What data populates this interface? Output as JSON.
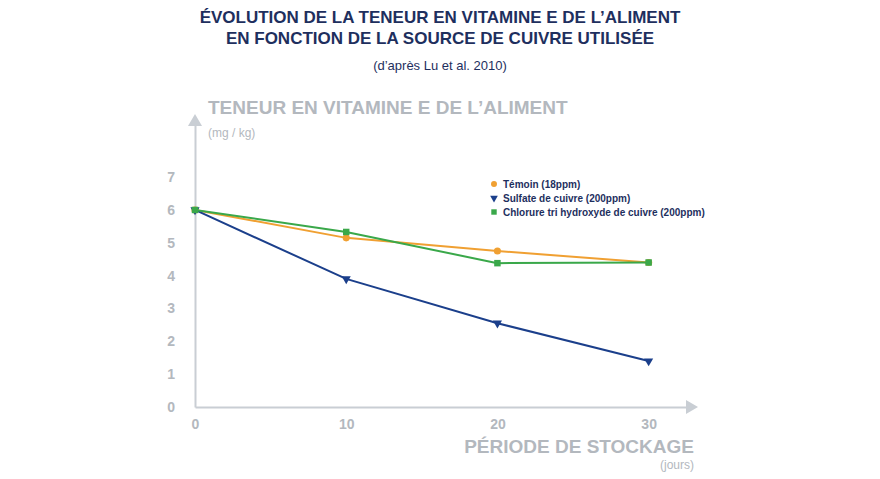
{
  "chart_data": {
    "type": "line",
    "title": [
      "ÉVOLUTION DE LA TENEUR EN VITAMINE E DE L’ALIMENT",
      "EN FONCTION DE LA SOURCE DE CUIVRE UTILISÉE"
    ],
    "subtitle": "(d’après Lu et al. 2010)",
    "y_label": "TENEUR EN VITAMINE E DE L’ALIMENT",
    "y_unit": "(mg / kg)",
    "x_label": "PÉRIODE DE STOCKAGE",
    "x_unit": "(jours)",
    "x": [
      0,
      10,
      20,
      30
    ],
    "series": [
      {
        "name": "Témoin (18ppm)",
        "color": "#f0a032",
        "marker": "circle",
        "values": [
          6.0,
          5.15,
          4.75,
          4.4
        ]
      },
      {
        "name": "Sulfate de cuivre (200ppm)",
        "color": "#1b3f8b",
        "marker": "triangle-down",
        "values": [
          6.0,
          3.9,
          2.55,
          1.4
        ]
      },
      {
        "name": "Chlorure tri hydroxyde de cuivre (200ppm)",
        "color": "#3aa84a",
        "marker": "square",
        "values": [
          6.0,
          5.33,
          4.38,
          4.4
        ]
      }
    ],
    "xlim": [
      0,
      33
    ],
    "xticks": [
      0,
      10,
      20,
      30
    ],
    "ylim": [
      0,
      8.8
    ],
    "yticks": [
      0,
      1,
      2,
      3,
      4,
      5,
      6,
      7
    ],
    "grid": false,
    "legend": "top-right"
  }
}
